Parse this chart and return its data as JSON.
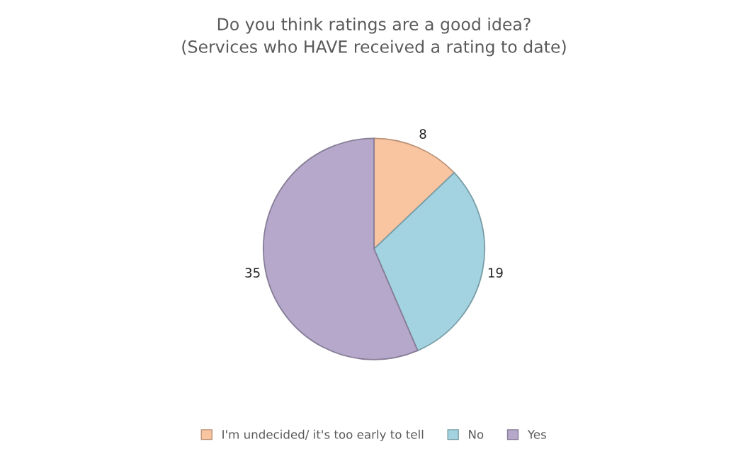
{
  "chart_data": {
    "type": "pie",
    "title": "Do you think ratings are a good idea?\n(Services who HAVE received a rating to date)",
    "categories": [
      "I'm undecided/ it's too early to tell",
      "No",
      "Yes"
    ],
    "values": [
      8,
      19,
      35
    ],
    "colors": [
      "#f9c4a0",
      "#a3d2e0",
      "#b5a8ca"
    ],
    "data_labels": true,
    "legend": "bottom"
  }
}
